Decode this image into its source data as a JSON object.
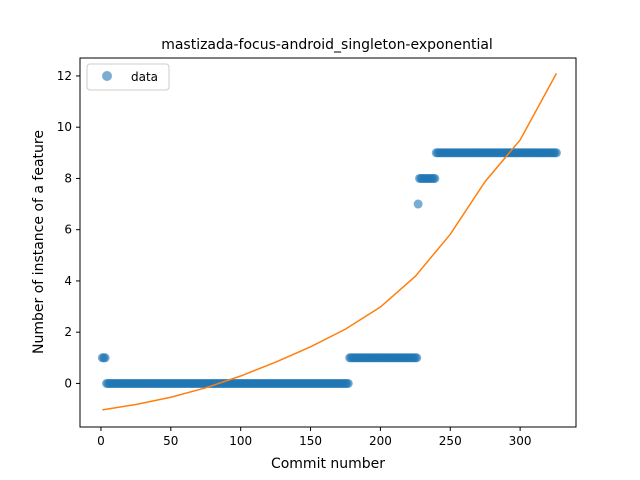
{
  "chart_data": {
    "type": "scatter",
    "title": "mastizada-focus-android_singleton-exponential",
    "xlabel": "Commit number",
    "ylabel": "Number of instance of a feature",
    "xlim": [
      -15,
      340
    ],
    "ylim": [
      -1.7,
      12.7
    ],
    "xticks": [
      0,
      50,
      100,
      150,
      200,
      250,
      300
    ],
    "yticks": [
      0,
      2,
      4,
      6,
      8,
      10,
      12
    ],
    "grid": false,
    "legend": {
      "position": "top-left",
      "entries": [
        "data"
      ]
    },
    "colors": {
      "data": "#1f77b4",
      "fit": "#ff7f0e"
    },
    "series": [
      {
        "name": "data",
        "kind": "points",
        "segments": [
          {
            "x_start": 1,
            "x_end": 3,
            "y": 1
          },
          {
            "x_start": 4,
            "x_end": 177,
            "y": 0
          },
          {
            "x_start": 178,
            "x_end": 226,
            "y": 1
          },
          {
            "x_start": 227,
            "x_end": 227,
            "y": 7
          },
          {
            "x_start": 228,
            "x_end": 239,
            "y": 8
          },
          {
            "x_start": 240,
            "x_end": 326,
            "y": 9
          }
        ]
      },
      {
        "kind": "line",
        "x": [
          1,
          25,
          50,
          75,
          100,
          125,
          150,
          175,
          200,
          225,
          250,
          275,
          300,
          326
        ],
        "y": [
          -1.03,
          -0.82,
          -0.54,
          -0.17,
          0.29,
          0.83,
          1.43,
          2.12,
          2.98,
          4.18,
          5.82,
          7.88,
          9.5,
          12.1
        ]
      }
    ]
  }
}
